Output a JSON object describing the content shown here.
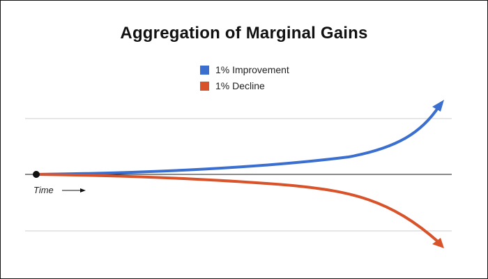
{
  "chart_data": {
    "type": "line",
    "title": "Aggregation of Marginal Gains",
    "xlabel": "Time",
    "ylabel": "",
    "grid": true,
    "legend_position": "top-center",
    "series": [
      {
        "name": "1% Improvement",
        "color": "#3a6fd0",
        "trend": "exponential-growth"
      },
      {
        "name": "1% Decline",
        "color": "#d9532a",
        "trend": "accelerating-decline"
      }
    ]
  },
  "colors": {
    "gridline": "#cccccc",
    "baseline": "#111111",
    "origin_dot": "#111111"
  }
}
